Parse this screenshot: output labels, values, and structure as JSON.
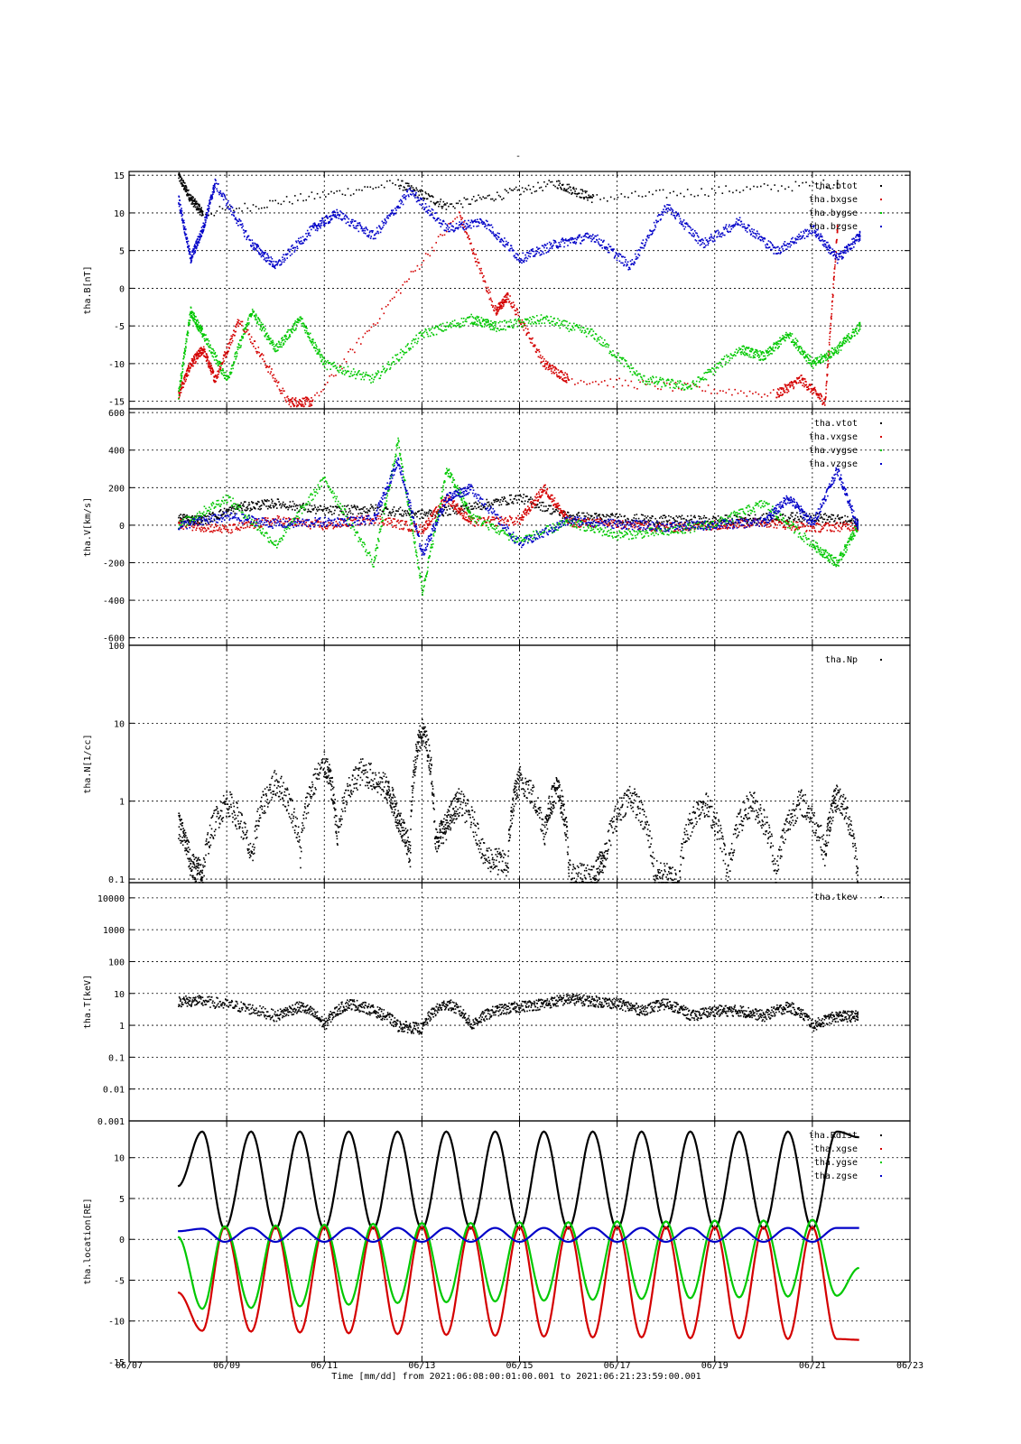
{
  "title_mark": "-",
  "x_axis": {
    "range": [
      "06/07",
      "06/23"
    ],
    "ticks": [
      "06/07",
      "06/09",
      "06/11",
      "06/13",
      "06/15",
      "06/17",
      "06/19",
      "06/21",
      "06/23"
    ],
    "label": "Time [mm/dd]  from 2021:06:08:00:01:00.001  to  2021:06:21:23:59:00.001"
  },
  "colors": {
    "black": "#000000",
    "red": "#d40000",
    "green": "#00c800",
    "blue": "#0000c8"
  },
  "chart_data": [
    {
      "type": "scatter",
      "ylabel": "tha.B[nT]",
      "ylim": [
        -16,
        15.5
      ],
      "yticks": [
        15,
        10,
        5,
        0,
        -5,
        -10,
        -15
      ],
      "legend": [
        "tha.btot",
        "tha.bxgse",
        "tha.bygse",
        "tha.bzgse"
      ],
      "series": [
        {
          "name": "tha.btot",
          "color": "black",
          "x": [
            "06/08 00:00",
            "06/08 06:00",
            "06/08 12:00",
            "06/12 12:00",
            "06/13 12:00",
            "06/15 18:00",
            "06/16 12:00",
            "06/21 12:00"
          ],
          "y": [
            15,
            12,
            10,
            14,
            11,
            14,
            12,
            14
          ]
        },
        {
          "name": "tha.bxgse",
          "color": "red",
          "x": [
            "06/08 00:00",
            "06/08 06:00",
            "06/08 12:00",
            "06/08 18:00",
            "06/09 06:00",
            "06/10 06:00",
            "06/10 18:00",
            "06/13 18:00",
            "06/14 12:00",
            "06/14 18:00",
            "06/15 12:00",
            "06/16 00:00",
            "06/20 06:00",
            "06/20 18:00",
            "06/21 06:00",
            "06/21 12:00"
          ],
          "y": [
            -14,
            -10,
            -8,
            -12,
            -4,
            -15,
            -15,
            10,
            -3,
            -1,
            -10,
            -12,
            -14,
            -12,
            -15,
            8
          ]
        },
        {
          "name": "tha.bygse",
          "color": "green",
          "x": [
            "06/08 00:00",
            "06/08 06:00",
            "06/08 12:00",
            "06/09 00:00",
            "06/09 12:00",
            "06/10 00:00",
            "06/10 12:00",
            "06/11 00:00",
            "06/12 00:00",
            "06/13 00:00",
            "06/14 00:00",
            "06/14 12:00",
            "06/15 12:00",
            "06/16 12:00",
            "06/17 12:00",
            "06/18 12:00",
            "06/19 12:00",
            "06/20 00:00",
            "06/20 12:00",
            "06/21 00:00",
            "06/21 12:00",
            "06/21 23:00"
          ],
          "y": [
            -14,
            -3,
            -6,
            -12,
            -3,
            -8,
            -4,
            -10,
            -12,
            -6,
            -4,
            -5,
            -4,
            -6,
            -12,
            -13,
            -8,
            -9,
            -6,
            -10,
            -8,
            -5
          ]
        },
        {
          "name": "tha.bzgse",
          "color": "blue",
          "x": [
            "06/08 00:00",
            "06/08 06:00",
            "06/08 12:00",
            "06/08 18:00",
            "06/09 12:00",
            "06/10 00:00",
            "06/10 18:00",
            "06/11 06:00",
            "06/12 00:00",
            "06/12 18:00",
            "06/13 12:00",
            "06/14 06:00",
            "06/15 00:00",
            "06/15 18:00",
            "06/16 12:00",
            "06/17 06:00",
            "06/18 00:00",
            "06/18 18:00",
            "06/19 12:00",
            "06/20 06:00",
            "06/21 00:00",
            "06/21 12:00",
            "06/21 23:00"
          ],
          "y": [
            12,
            4,
            8,
            14,
            6,
            3,
            8,
            10,
            7,
            13,
            8,
            9,
            4,
            6,
            7,
            3,
            11,
            6,
            9,
            5,
            8,
            4,
            7
          ]
        }
      ]
    },
    {
      "type": "scatter",
      "ylabel": "tha.V[km/s]",
      "ylim": [
        -640,
        620
      ],
      "yticks": [
        600,
        400,
        200,
        0,
        -200,
        -400,
        -600
      ],
      "legend": [
        "tha.vtot",
        "tha.vxgse",
        "tha.vygse",
        "tha.vzgse"
      ],
      "series": [
        {
          "name": "tha.vtot",
          "color": "black",
          "x": [
            "06/08 00:00",
            "06/08 12:00",
            "06/09 06:00",
            "06/10 00:00",
            "06/11 00:00",
            "06/12 00:00",
            "06/13 00:00",
            "06/14 00:00",
            "06/15 00:00",
            "06/16 00:00",
            "06/17 00:00",
            "06/18 00:00",
            "06/19 00:00",
            "06/20 00:00",
            "06/21 00:00",
            "06/21 22:00"
          ],
          "y": [
            40,
            30,
            100,
            120,
            80,
            90,
            60,
            100,
            150,
            50,
            40,
            30,
            30,
            40,
            50,
            20
          ]
        },
        {
          "name": "tha.vxgse",
          "color": "red",
          "x": [
            "06/08 00:00",
            "06/09 00:00",
            "06/10 00:00",
            "06/11 00:00",
            "06/12 00:00",
            "06/13 00:00",
            "06/13 12:00",
            "06/14 00:00",
            "06/15 00:00",
            "06/15 12:00",
            "06/16 00:00",
            "06/17 00:00",
            "06/18 00:00",
            "06/19 00:00",
            "06/20 00:00",
            "06/21 00:00",
            "06/21 22:00"
          ],
          "y": [
            10,
            -20,
            30,
            0,
            40,
            -20,
            150,
            20,
            30,
            200,
            20,
            10,
            -10,
            5,
            20,
            -10,
            0
          ]
        },
        {
          "name": "tha.vygse",
          "color": "green",
          "x": [
            "06/08 00:00",
            "06/09 00:00",
            "06/10 00:00",
            "06/11 00:00",
            "06/12 00:00",
            "06/12 12:00",
            "06/13 00:00",
            "06/13 12:00",
            "06/14 00:00",
            "06/15 00:00",
            "06/16 00:00",
            "06/17 00:00",
            "06/18 00:00",
            "06/19 00:00",
            "06/20 00:00",
            "06/21 00:00",
            "06/21 12:00",
            "06/21 22:00"
          ],
          "y": [
            0,
            150,
            -100,
            250,
            -200,
            450,
            -350,
            300,
            50,
            -80,
            20,
            -50,
            -30,
            10,
            120,
            -100,
            -200,
            0
          ]
        },
        {
          "name": "tha.vzgse",
          "color": "blue",
          "x": [
            "06/08 00:00",
            "06/09 00:00",
            "06/10 00:00",
            "06/11 00:00",
            "06/12 00:00",
            "06/12 12:00",
            "06/13 00:00",
            "06/13 12:00",
            "06/14 00:00",
            "06/15 00:00",
            "06/16 00:00",
            "06/17 00:00",
            "06/18 00:00",
            "06/19 00:00",
            "06/20 00:00",
            "06/20 12:00",
            "06/21 00:00",
            "06/21 12:00",
            "06/21 22:00"
          ],
          "y": [
            0,
            50,
            10,
            20,
            30,
            350,
            -150,
            150,
            200,
            -100,
            30,
            10,
            -5,
            5,
            20,
            150,
            10,
            300,
            0
          ]
        }
      ]
    },
    {
      "type": "scatter",
      "ylabel": "tha.N[1/cc]",
      "yscale": "log",
      "ylim": [
        0.09,
        100
      ],
      "yticks": [
        100,
        10,
        1,
        0.1
      ],
      "legend": [
        "tha.Np"
      ],
      "series": [
        {
          "name": "tha.Np",
          "color": "black",
          "x": [
            "06/08 00:00",
            "06/08 06:00",
            "06/08 12:00",
            "06/09 00:00",
            "06/09 12:00",
            "06/10 00:00",
            "06/10 12:00",
            "06/11 00:00",
            "06/11 06:00",
            "06/11 18:00",
            "06/12 06:00",
            "06/12 12:00",
            "06/12 18:00",
            "06/13 00:00",
            "06/13 06:00",
            "06/13 12:00",
            "06/13 18:00",
            "06/14 06:00",
            "06/14 18:00",
            "06/15 00:00",
            "06/15 12:00",
            "06/15 18:00",
            "06/16 00:00",
            "06/16 12:00",
            "06/16 18:00",
            "06/17 06:00",
            "06/17 18:00",
            "06/18 06:00",
            "06/18 18:00",
            "06/19 06:00",
            "06/19 18:00",
            "06/20 06:00",
            "06/20 18:00",
            "06/21 06:00",
            "06/21 12:00",
            "06/21 22:00"
          ],
          "y": [
            0.5,
            0.15,
            0.12,
            1,
            0.15,
            1.8,
            0.2,
            3,
            0.3,
            2.5,
            1.5,
            0.6,
            0.2,
            8,
            0.3,
            0.5,
            1,
            0.2,
            0.15,
            2,
            0.4,
            1.5,
            0.12,
            0.1,
            0.2,
            1.2,
            0.12,
            0.1,
            1,
            0.1,
            1,
            0.1,
            1,
            0.2,
            1.2,
            0.1
          ]
        }
      ]
    },
    {
      "type": "scatter",
      "ylabel": "tha.T[keV]",
      "yscale": "log",
      "ylim": [
        0.001,
        30000
      ],
      "yticks": [
        10000,
        1000,
        100,
        10,
        1,
        0.1,
        0.01,
        0.001
      ],
      "ytick_labels": [
        "10000",
        "1000",
        "100",
        "10",
        "1",
        "0.1",
        "0.01",
        "0.001"
      ],
      "legend": [
        "tha.tkev"
      ],
      "series": [
        {
          "name": "tha.tkev",
          "color": "black",
          "x": [
            "06/08 00:00",
            "06/08 12:00",
            "06/09 06:00",
            "06/10 00:00",
            "06/10 12:00",
            "06/11 00:00",
            "06/11 12:00",
            "06/12 00:00",
            "06/12 12:00",
            "06/13 00:00",
            "06/13 12:00",
            "06/14 00:00",
            "06/14 12:00",
            "06/15 00:00",
            "06/15 12:00",
            "06/16 00:00",
            "06/16 12:00",
            "06/17 00:00",
            "06/17 12:00",
            "06/18 00:00",
            "06/18 12:00",
            "06/19 00:00",
            "06/19 12:00",
            "06/20 00:00",
            "06/20 12:00",
            "06/21 00:00",
            "06/21 12:00",
            "06/21 22:00"
          ],
          "y": [
            6,
            6,
            4,
            2,
            4,
            1,
            5,
            3,
            1,
            0.8,
            5,
            1,
            3,
            4,
            5,
            7,
            6,
            5,
            3,
            5,
            2,
            3,
            3,
            2,
            4,
            1,
            2,
            2
          ]
        }
      ]
    },
    {
      "type": "line",
      "ylabel": "tha.location[RE]",
      "ylim": [
        -15,
        14.5
      ],
      "yticks": [
        10,
        5,
        0,
        -5,
        -10,
        -15
      ],
      "legend": [
        "tha.Rdist",
        "tha.xgse",
        "tha.ygse",
        "tha.zgse"
      ],
      "series": [
        {
          "name": "tha.Rdist",
          "color": "black",
          "x": [
            "06/08 00:00",
            "06/08 12:00",
            "06/08 23:00",
            "06/09 12:00",
            "06/10 00:00",
            "06/10 12:00",
            "06/11 00:00",
            "06/11 12:00",
            "06/12 00:00",
            "06/12 12:00",
            "06/13 00:00",
            "06/13 12:00",
            "06/14 00:00",
            "06/14 12:00",
            "06/15 00:00",
            "06/15 12:00",
            "06/16 00:00",
            "06/16 12:00",
            "06/17 00:00",
            "06/17 12:00",
            "06/18 00:00",
            "06/18 12:00",
            "06/19 00:00",
            "06/19 12:00",
            "06/20 00:00",
            "06/20 12:00",
            "06/21 00:00",
            "06/21 12:00",
            "06/21 23:00"
          ],
          "y": [
            6.5,
            13.2,
            1.3,
            13.2,
            1.3,
            13.2,
            1.3,
            13.2,
            1.3,
            13.2,
            1.3,
            13.2,
            1.3,
            13.2,
            1.3,
            13.2,
            1.3,
            13.2,
            1.3,
            13.2,
            1.3,
            13.2,
            1.3,
            13.2,
            1.3,
            13.2,
            1.3,
            13.2,
            12.5
          ]
        },
        {
          "name": "tha.xgse",
          "color": "red",
          "x": [
            "06/08 00:00",
            "06/08 12:00",
            "06/08 23:00",
            "06/09 12:00",
            "06/10 00:00",
            "06/10 12:00",
            "06/11 00:00",
            "06/11 12:00",
            "06/12 00:00",
            "06/12 12:00",
            "06/13 00:00",
            "06/13 12:00",
            "06/14 00:00",
            "06/14 12:00",
            "06/15 00:00",
            "06/15 12:00",
            "06/16 00:00",
            "06/16 12:00",
            "06/17 00:00",
            "06/17 12:00",
            "06/18 00:00",
            "06/18 12:00",
            "06/19 00:00",
            "06/19 12:00",
            "06/20 00:00",
            "06/20 12:00",
            "06/21 00:00",
            "06/21 12:00",
            "06/21 23:00"
          ],
          "y": [
            -6.5,
            -11.2,
            1.5,
            -11.3,
            1.5,
            -11.4,
            1.5,
            -11.5,
            1.5,
            -11.6,
            1.5,
            -11.7,
            1.5,
            -11.8,
            1.5,
            -11.9,
            1.5,
            -12,
            1.5,
            -12,
            1.5,
            -12.1,
            1.5,
            -12.1,
            1.5,
            -12.2,
            1.5,
            -12.2,
            -12.3
          ]
        },
        {
          "name": "tha.ygse",
          "color": "green",
          "x": [
            "06/08 00:00",
            "06/08 12:00",
            "06/08 23:00",
            "06/09 12:00",
            "06/10 00:00",
            "06/10 12:00",
            "06/11 00:00",
            "06/11 12:00",
            "06/12 00:00",
            "06/12 12:00",
            "06/13 00:00",
            "06/13 12:00",
            "06/14 00:00",
            "06/14 12:00",
            "06/15 00:00",
            "06/15 12:00",
            "06/16 00:00",
            "06/16 12:00",
            "06/17 00:00",
            "06/17 12:00",
            "06/18 00:00",
            "06/18 12:00",
            "06/19 00:00",
            "06/19 12:00",
            "06/20 00:00",
            "06/20 12:00",
            "06/21 00:00",
            "06/21 12:00",
            "06/21 23:00"
          ],
          "y": [
            0.3,
            -8.5,
            1.6,
            -8.4,
            1.7,
            -8.2,
            1.8,
            -8.0,
            1.9,
            -7.8,
            2.0,
            -7.7,
            2.0,
            -7.6,
            2.1,
            -7.5,
            2.1,
            -7.4,
            2.2,
            -7.3,
            2.2,
            -7.2,
            2.3,
            -7.1,
            2.3,
            -7.0,
            2.4,
            -6.9,
            -3.5
          ]
        },
        {
          "name": "tha.zgse",
          "color": "blue",
          "x": [
            "06/08 00:00",
            "06/08 12:00",
            "06/08 23:00",
            "06/09 12:00",
            "06/10 00:00",
            "06/10 12:00",
            "06/11 00:00",
            "06/11 12:00",
            "06/12 00:00",
            "06/12 12:00",
            "06/13 00:00",
            "06/13 12:00",
            "06/14 00:00",
            "06/14 12:00",
            "06/15 00:00",
            "06/15 12:00",
            "06/16 00:00",
            "06/16 12:00",
            "06/17 00:00",
            "06/17 12:00",
            "06/18 00:00",
            "06/18 12:00",
            "06/19 00:00",
            "06/19 12:00",
            "06/20 00:00",
            "06/20 12:00",
            "06/21 00:00",
            "06/21 12:00",
            "06/21 23:00"
          ],
          "y": [
            1.0,
            1.3,
            -0.3,
            1.4,
            -0.3,
            1.4,
            -0.3,
            1.4,
            -0.3,
            1.4,
            -0.3,
            1.4,
            -0.3,
            1.4,
            -0.3,
            1.4,
            -0.3,
            1.4,
            -0.3,
            1.4,
            -0.3,
            1.4,
            -0.3,
            1.4,
            -0.3,
            1.4,
            -0.3,
            1.4,
            1.4
          ]
        }
      ]
    }
  ]
}
